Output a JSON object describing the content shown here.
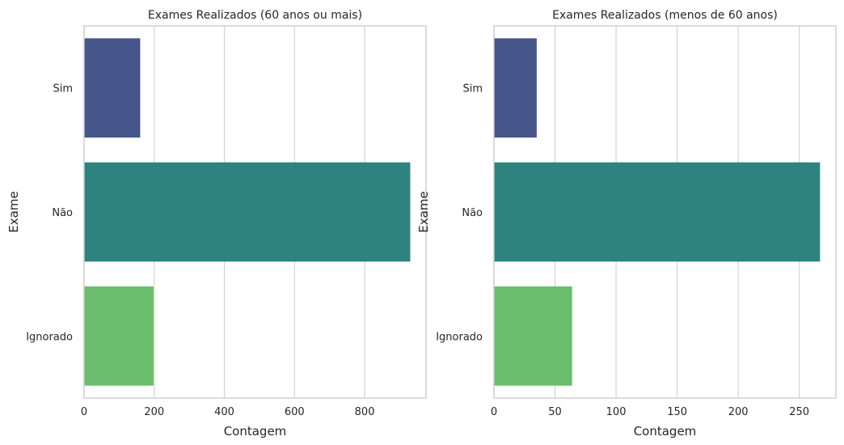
{
  "chart_data": [
    {
      "type": "bar",
      "orientation": "horizontal",
      "title": "Exames Realizados (60 anos ou mais)",
      "xlabel": "Contagem",
      "ylabel": "Exame",
      "categories": [
        "Sim",
        "Não",
        "Ignorado"
      ],
      "values": [
        160,
        930,
        198
      ],
      "colors": [
        "#46568a",
        "#2e837e",
        "#6bbe6d"
      ],
      "xlim": [
        0,
        975
      ],
      "xticks": [
        0,
        200,
        400,
        600,
        800
      ],
      "grid": true
    },
    {
      "type": "bar",
      "orientation": "horizontal",
      "title": "Exames Realizados (menos de 60 anos)",
      "xlabel": "Contagem",
      "ylabel": "Exame",
      "categories": [
        "Sim",
        "Não",
        "Ignorado"
      ],
      "values": [
        35,
        267,
        64
      ],
      "colors": [
        "#46568a",
        "#2e837e",
        "#6bbe6d"
      ],
      "xlim": [
        0,
        280
      ],
      "xticks": [
        0,
        50,
        100,
        150,
        200,
        250
      ],
      "grid": true
    }
  ]
}
